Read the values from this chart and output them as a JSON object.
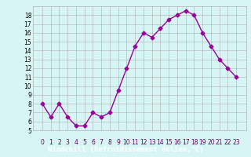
{
  "x": [
    0,
    1,
    2,
    3,
    4,
    5,
    6,
    7,
    8,
    9,
    10,
    11,
    12,
    13,
    14,
    15,
    16,
    17,
    18,
    19,
    20,
    21,
    22,
    23
  ],
  "y": [
    8,
    6.5,
    8,
    6.5,
    5.5,
    5.5,
    7,
    6.5,
    7,
    9.5,
    12,
    14.5,
    16,
    15.5,
    16.5,
    17.5,
    18,
    18.5,
    18,
    16,
    14.5,
    13,
    12,
    11
  ],
  "line_color": "#990099",
  "marker": "D",
  "marker_size": 2.5,
  "bg_color": "#d8f5f5",
  "grid_color": "#b0b0b0",
  "xlabel": "Windchill (Refroidissement éolien,°C)",
  "xlabel_color": "#ffffff",
  "xlabel_bg": "#880088",
  "ylim": [
    5,
    19
  ],
  "yticks": [
    5,
    6,
    7,
    8,
    9,
    10,
    11,
    12,
    13,
    14,
    15,
    16,
    17,
    18
  ],
  "xticks": [
    0,
    1,
    2,
    3,
    4,
    5,
    6,
    7,
    8,
    9,
    10,
    11,
    12,
    13,
    14,
    15,
    16,
    17,
    18,
    19,
    20,
    21,
    22,
    23
  ],
  "tick_fontsize": 5.5,
  "xlabel_fontsize": 6.5,
  "line_width": 1.0
}
